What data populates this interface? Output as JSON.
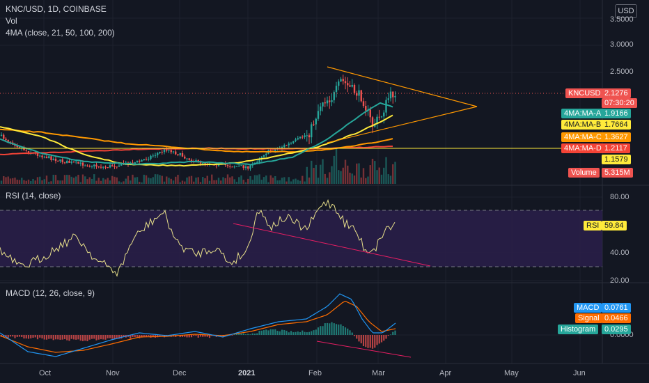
{
  "header": {
    "symbol_line": "KNC/USD, 1D, COINBASE",
    "vol_label": "Vol",
    "ma_label": "4MA (close, 21, 50, 100, 200)",
    "rsi_label": "RSI (14, close)",
    "macd_label": "MACD (12, 26, close, 9)",
    "currency_button": "USD"
  },
  "colors": {
    "background": "#131722",
    "up": "#26a69a",
    "down": "#ef5350",
    "ma_a": "#26a69a",
    "ma_b": "#ffeb3b",
    "ma_c": "#ff9800",
    "ma_d": "#f44336",
    "rsi_line": "#e8e08a",
    "rsi_band": "#2a1f4a",
    "macd_line": "#2196f3",
    "signal_line": "#ff6d00",
    "trendline": "#ff9800",
    "rsi_divergence": "#e91e63"
  },
  "price_axis": {
    "ticks": [
      "3.5000",
      "3.0000",
      "2.5000"
    ]
  },
  "rsi_axis": {
    "ticks": [
      "80.00",
      "40.00",
      "20.00"
    ]
  },
  "macd_axis": {
    "ticks": [
      "0.0000"
    ]
  },
  "time_axis": [
    "Oct",
    "Nov",
    "Dec",
    "2021",
    "Feb",
    "Mar",
    "Apr",
    "May",
    "Jun"
  ],
  "labels": {
    "knc": {
      "name": "KNCUSD",
      "value": "2.1276",
      "countdown": "07:30:20"
    },
    "ma_a": {
      "name": "4MA:MA-A",
      "value": "1.9166"
    },
    "ma_b": {
      "name": "4MA:MA-B",
      "value": "1.7664"
    },
    "ma_c": {
      "name": "4MA:MA-C",
      "value": "1.3627"
    },
    "ma_d": {
      "name": "4MA:MA-D",
      "value": "1.2117"
    },
    "hline": {
      "value": "1.1579"
    },
    "volume": {
      "name": "Volume",
      "value": "5.315M"
    },
    "rsi": {
      "name": "RSI",
      "value": "59.84"
    },
    "macd": {
      "name": "MACD",
      "value": "0.0761"
    },
    "signal": {
      "name": "Signal",
      "value": "0.0466"
    },
    "histogram": {
      "name": "Histogram",
      "value": "0.0295"
    }
  },
  "chart_data": [
    {
      "type": "line",
      "title": "KNC/USD, 1D, COINBASE",
      "x": [
        "2020-09-17",
        "2020-10-01",
        "2020-11-01",
        "2020-12-01",
        "2021-01-01",
        "2021-02-01",
        "2021-02-10",
        "2021-02-25",
        "2021-03-09"
      ],
      "ylim": [
        0.9,
        3.6
      ],
      "series": [
        {
          "name": "KNCUSD",
          "values": [
            1.45,
            1.1,
            1.05,
            1.25,
            1.15,
            1.5,
            2.4,
            1.7,
            2.1276
          ]
        }
      ],
      "ticks": [
        "3.5000",
        "3.0000",
        "2.5000"
      ]
    },
    {
      "type": "line",
      "title": "RSI (14, close)",
      "ylim": [
        20,
        85
      ],
      "series": [
        {
          "name": "RSI",
          "values": [
            38,
            30,
            48,
            68,
            45,
            75,
            80,
            38,
            59.84
          ]
        }
      ],
      "ticks": [
        "80.00",
        "40.00",
        "20.00"
      ]
    },
    {
      "type": "bar",
      "title": "MACD (12, 26, close, 9)",
      "series": [
        {
          "name": "MACD",
          "values": [
            0.0761
          ]
        },
        {
          "name": "Signal",
          "values": [
            0.0466
          ]
        },
        {
          "name": "Histogram",
          "values": [
            0.0295
          ]
        }
      ],
      "ticks": [
        "0.0000"
      ]
    }
  ]
}
